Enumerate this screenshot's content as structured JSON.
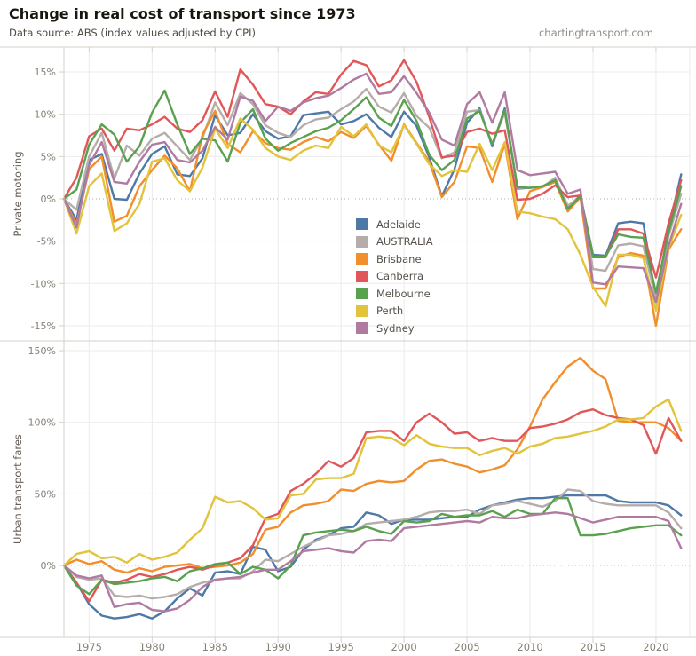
{
  "header": {
    "title": "Change in real cost of transport since 1973",
    "subtitle": "Data source: ABS (index values adjusted by CPI)",
    "site": "chartingtransport.com"
  },
  "colors": {
    "Adelaide": "#4e79a7",
    "AUSTRALIA": "#b5acab",
    "Brisbane": "#f28e2b",
    "Canberra": "#e15759",
    "Melbourne": "#59a14f",
    "Perth": "#e2c33c",
    "Sydney": "#b07aa1",
    "grid": "#ebebeb",
    "border": "#d6d2cb",
    "zero_line": "#b7b1a9",
    "tick_text": "#878076",
    "axis_title": "#635d55"
  },
  "legend": {
    "items": [
      {
        "label": "Adelaide",
        "color": "#4e79a7"
      },
      {
        "label": "AUSTRALIA",
        "color": "#b5acab"
      },
      {
        "label": "Brisbane",
        "color": "#f28e2b"
      },
      {
        "label": "Canberra",
        "color": "#e15759"
      },
      {
        "label": "Melbourne",
        "color": "#59a14f"
      },
      {
        "label": "Perth",
        "color": "#e2c33c"
      },
      {
        "label": "Sydney",
        "color": "#b07aa1"
      }
    ]
  },
  "x_axis": {
    "tick_years": [
      1975,
      1980,
      1985,
      1990,
      1995,
      2000,
      2005,
      2010,
      2015,
      2020
    ],
    "tick_labels": [
      "1975",
      "1980",
      "1985",
      "1990",
      "1995",
      "2000",
      "2005",
      "2010",
      "2015",
      "2020"
    ]
  },
  "chart_data": [
    {
      "type": "line",
      "panel": "top",
      "ylabel": "Private motoring",
      "ylim": [
        -16,
        18
      ],
      "yticks": [
        15,
        10,
        5,
        0,
        -5,
        -10,
        -15
      ],
      "ytick_labels": [
        "15%",
        "10%",
        "5%",
        "0%",
        "-5%",
        "-10%",
        "-15%"
      ],
      "x": [
        1973,
        1974,
        1975,
        1976,
        1977,
        1978,
        1979,
        1980,
        1981,
        1982,
        1983,
        1984,
        1985,
        1986,
        1987,
        1988,
        1989,
        1990,
        1991,
        1992,
        1993,
        1994,
        1995,
        1996,
        1997,
        1998,
        1999,
        2000,
        2001,
        2002,
        2003,
        2004,
        2005,
        2006,
        2007,
        2008,
        2009,
        2010,
        2011,
        2012,
        2013,
        2014,
        2015,
        2016,
        2017,
        2018,
        2019,
        2020,
        2021,
        2022
      ],
      "series": [
        {
          "name": "Adelaide",
          "values": [
            0,
            -2.5,
            4.6,
            5.3,
            0,
            -0.1,
            3,
            5.3,
            6.2,
            2.9,
            2.7,
            4.8,
            9.9,
            7.5,
            7.8,
            10,
            8,
            7.1,
            7.4,
            9.9,
            10.1,
            10.3,
            8.8,
            9.2,
            10,
            8.4,
            7.3,
            10.3,
            8.6,
            4.9,
            0.3,
            3.5,
            9,
            10.7,
            6.2,
            10.7,
            1.2,
            1.3,
            1.4,
            2.3,
            -1,
            0.4,
            -6.6,
            -6.7,
            -2.9,
            -2.7,
            -2.9,
            -11.8,
            -3.5,
            2.9
          ]
        },
        {
          "name": "AUSTRALIA",
          "values": [
            0,
            -1.3,
            5,
            7.8,
            2.4,
            6.3,
            5.1,
            7.1,
            7.8,
            6.2,
            4.6,
            7.2,
            11.4,
            8.7,
            12.5,
            11.2,
            8.7,
            7.8,
            7.3,
            8.7,
            9.4,
            9.6,
            10.6,
            11.5,
            13,
            10.9,
            10.2,
            12.5,
            9.8,
            8.4,
            4.8,
            5.5,
            10.3,
            10.5,
            6.5,
            10.2,
            1.3,
            1.3,
            1.4,
            2.5,
            -0.8,
            0.2,
            -8.3,
            -8.5,
            -5.5,
            -5.3,
            -5.6,
            -11.9,
            -4.4,
            0.6
          ]
        },
        {
          "name": "Brisbane",
          "values": [
            0,
            -3,
            3.5,
            5,
            -2.7,
            -2,
            1.5,
            3.4,
            5.1,
            3.6,
            0.9,
            7.6,
            10.4,
            6.5,
            5.5,
            8,
            6.6,
            6,
            5.8,
            6.7,
            7.3,
            6.8,
            7.9,
            7.2,
            8.6,
            6.4,
            4.5,
            8.8,
            6.6,
            4.4,
            0.2,
            2,
            6.2,
            6,
            2,
            6.5,
            -2.4,
            0.9,
            1.4,
            2,
            -1.5,
            0.2,
            -10.6,
            -10.6,
            -6.9,
            -6.4,
            -6.7,
            -15,
            -6,
            -3.6
          ]
        },
        {
          "name": "Canberra",
          "values": [
            0,
            2.5,
            7.4,
            8.3,
            5.7,
            8.3,
            8.1,
            8.8,
            9.7,
            8.3,
            7.9,
            9.3,
            12.7,
            9.7,
            15.3,
            13.5,
            11.2,
            10.9,
            10,
            11.5,
            12.6,
            12.4,
            14.7,
            16.3,
            15.8,
            13.3,
            14,
            16.4,
            13.8,
            9.7,
            4.9,
            5.1,
            7.9,
            8.3,
            7.7,
            8.1,
            -0.1,
            0,
            0.6,
            1.6,
            0.2,
            0.4,
            -6.9,
            -6.9,
            -3.6,
            -3.6,
            -4.1,
            -9.3,
            -2.9,
            2.2
          ]
        },
        {
          "name": "Melbourne",
          "values": [
            0,
            1.1,
            6.4,
            8.8,
            7.6,
            4.4,
            6.2,
            10.2,
            12.8,
            8.8,
            5.3,
            7.1,
            6.9,
            4.4,
            9,
            10.6,
            7.1,
            5.7,
            6.6,
            7.3,
            8,
            8.4,
            9.3,
            10.6,
            12,
            9.6,
            8.6,
            11.7,
            9.2,
            5.2,
            3.4,
            4.6,
            9.5,
            10.4,
            6.4,
            10.5,
            1.4,
            1.3,
            1.5,
            2.2,
            -1.2,
            0.3,
            -6.8,
            -6.8,
            -4.2,
            -4.5,
            -4.6,
            -11.1,
            -4,
            1.5
          ]
        },
        {
          "name": "Perth",
          "values": [
            0,
            -4.1,
            1.5,
            3,
            -3.8,
            -2.9,
            -0.6,
            4.4,
            4.8,
            2.2,
            0.9,
            3.7,
            8.3,
            6,
            9.5,
            8.2,
            6,
            5,
            4.6,
            5.7,
            6.3,
            6,
            8.5,
            7.4,
            8.8,
            6.3,
            5.5,
            8.7,
            6.5,
            4.1,
            2.7,
            3.4,
            3.2,
            6.5,
            3.4,
            6.7,
            -1.5,
            -1.7,
            -2.1,
            -2.4,
            -3.6,
            -6.6,
            -10.4,
            -12.7,
            -6.6,
            -6.6,
            -7,
            -13.2,
            -5.8,
            -1.9
          ]
        },
        {
          "name": "Sydney",
          "values": [
            0,
            -3.4,
            4,
            6.7,
            2,
            1.8,
            4.4,
            6.4,
            6.7,
            4.6,
            4.3,
            5.7,
            8.5,
            7,
            12.1,
            11.6,
            9.2,
            10.9,
            10.4,
            11.4,
            11.9,
            12.2,
            13.1,
            14.1,
            14.8,
            12.4,
            12.6,
            14.5,
            12.5,
            10.2,
            7,
            6.3,
            11.2,
            12.6,
            9,
            12.6,
            3.4,
            2.8,
            3,
            3.2,
            0.6,
            1.1,
            -9.9,
            -10.1,
            -8,
            -8.1,
            -8.2,
            -12.2,
            -5.6,
            -0.6
          ]
        }
      ]
    },
    {
      "type": "line",
      "panel": "bottom",
      "ylabel": "Urban transport fares",
      "ylim": [
        -50,
        152
      ],
      "yticks": [
        150,
        100,
        50,
        0
      ],
      "ytick_labels": [
        "150%",
        "100%",
        "50%",
        "0%"
      ],
      "x": [
        1973,
        1974,
        1975,
        1976,
        1977,
        1978,
        1979,
        1980,
        1981,
        1982,
        1983,
        1984,
        1985,
        1986,
        1987,
        1988,
        1989,
        1990,
        1991,
        1992,
        1993,
        1994,
        1995,
        1996,
        1997,
        1998,
        1999,
        2000,
        2001,
        2002,
        2003,
        2004,
        2005,
        2006,
        2007,
        2008,
        2009,
        2010,
        2011,
        2012,
        2013,
        2014,
        2015,
        2016,
        2017,
        2018,
        2019,
        2020,
        2021,
        2022
      ],
      "series": [
        {
          "name": "Adelaide",
          "values": [
            0,
            -12,
            -27,
            -35,
            -37,
            -36,
            -34,
            -37,
            -32,
            -23,
            -16,
            -21,
            -5,
            -4,
            -6,
            13,
            11,
            -4,
            -1,
            11,
            18,
            21,
            26,
            27,
            37,
            35,
            29,
            32,
            32,
            32,
            33,
            34,
            34,
            39,
            42,
            44,
            46,
            47,
            47,
            48,
            49,
            49,
            49,
            49,
            45,
            44,
            44,
            44,
            42,
            35
          ]
        },
        {
          "name": "AUSTRALIA",
          "values": [
            0,
            -8,
            -10,
            -9,
            -21,
            -22,
            -21,
            -23,
            -22,
            -20,
            -15,
            -12,
            -10,
            -9,
            -9,
            -4,
            4,
            3,
            8,
            13,
            17,
            21,
            22,
            24,
            29,
            30,
            31,
            32,
            34,
            37,
            38,
            38,
            39,
            36,
            42,
            43,
            45,
            43,
            41,
            45,
            53,
            52,
            45,
            43,
            42,
            42,
            42,
            42,
            37,
            26
          ]
        },
        {
          "name": "Brisbane",
          "values": [
            0,
            4,
            1,
            3,
            -3,
            -5,
            -2,
            -4,
            -1,
            0,
            1,
            -2,
            -1,
            0,
            2,
            8,
            25,
            27,
            37,
            42,
            43,
            45,
            53,
            52,
            57,
            59,
            58,
            59,
            67,
            73,
            74,
            71,
            69,
            65,
            67,
            70,
            81,
            97,
            116,
            128,
            139,
            145,
            136,
            130,
            101,
            100,
            100,
            100,
            96,
            87
          ]
        },
        {
          "name": "Canberra",
          "values": [
            0,
            -12,
            -25,
            -10,
            -12,
            -10,
            -6,
            -8,
            -6,
            -3,
            -1,
            -3,
            0,
            2,
            5,
            14,
            33,
            36,
            52,
            57,
            64,
            73,
            69,
            75,
            93,
            94,
            94,
            87,
            100,
            106,
            100,
            92,
            93,
            87,
            89,
            87,
            87,
            96,
            97,
            99,
            102,
            107,
            109,
            105,
            103,
            102,
            98,
            78,
            103,
            87
          ]
        },
        {
          "name": "Melbourne",
          "values": [
            0,
            -14,
            -20,
            -10,
            -13,
            -12,
            -11,
            -9,
            -8,
            -11,
            -4,
            -2,
            1,
            2,
            -6,
            -1,
            -3,
            -9,
            0,
            21,
            23,
            24,
            25,
            24,
            27,
            24,
            22,
            31,
            30,
            31,
            36,
            34,
            35,
            35,
            38,
            34,
            39,
            36,
            36,
            47,
            47,
            21,
            21,
            22,
            24,
            26,
            27,
            28,
            28,
            21
          ]
        },
        {
          "name": "Perth",
          "values": [
            0,
            8,
            10,
            5,
            6,
            2,
            8,
            4,
            6,
            9,
            18,
            26,
            48,
            44,
            45,
            40,
            32,
            33,
            49,
            50,
            60,
            61,
            61,
            64,
            89,
            90,
            89,
            84,
            91,
            85,
            83,
            82,
            82,
            77,
            80,
            82,
            78,
            83,
            85,
            89,
            90,
            92,
            94,
            97,
            102,
            102,
            103,
            111,
            116,
            94
          ]
        },
        {
          "name": "Sydney",
          "values": [
            0,
            -7,
            -9,
            -7,
            -29,
            -27,
            -26,
            -31,
            -32,
            -30,
            -24,
            -15,
            -10,
            -9,
            -8,
            -5,
            -3,
            -3,
            3,
            10,
            11,
            12,
            10,
            9,
            17,
            18,
            17,
            26,
            27,
            28,
            29,
            30,
            31,
            30,
            34,
            33,
            33,
            35,
            36,
            37,
            36,
            33,
            30,
            32,
            34,
            34,
            34,
            34,
            31,
            12
          ]
        }
      ]
    }
  ]
}
